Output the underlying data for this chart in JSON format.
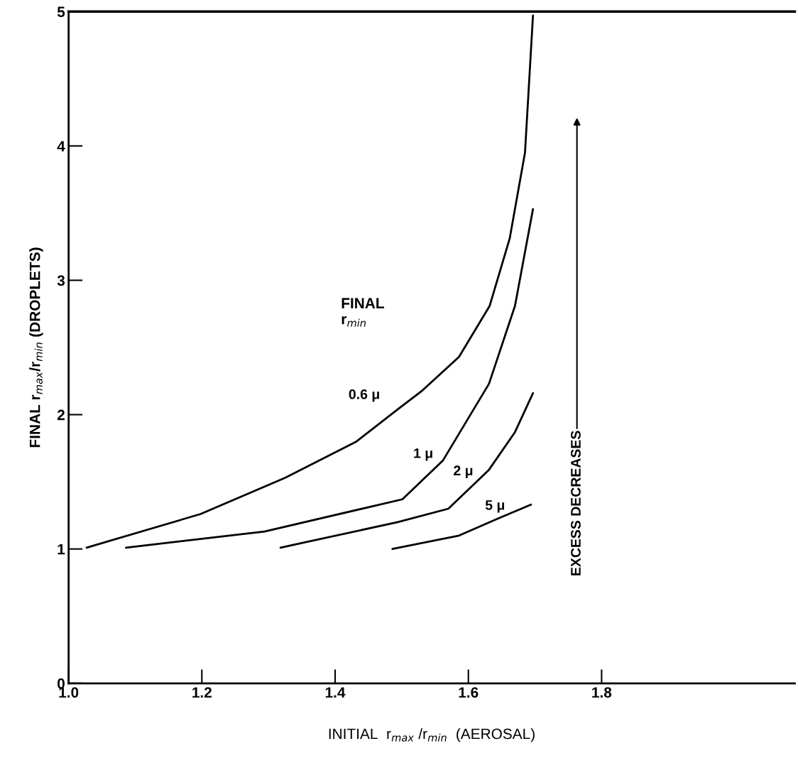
{
  "chart_data": {
    "type": "line",
    "xlabel": "INITIAL  r$_{max}$ /r$_{min}$  (AEROSAL)",
    "ylabel": "FINAL r$_{max}$/r$_{min}$ (DROPLETS)",
    "xlim": [
      1.0,
      2.09
    ],
    "xticks": [
      {
        "value": 1.0,
        "label": "1.0"
      },
      1.2,
      1.4,
      1.6,
      1.8
    ],
    "ylim": [
      0,
      5
    ],
    "yticks": [
      0,
      1,
      2,
      3,
      4,
      5
    ],
    "grid": false,
    "legend": false,
    "marker": "none",
    "line_style": "solid",
    "annotations": [
      "FINAL\nr$_{min}$",
      "EXCESS DECREASES"
    ],
    "series": [
      {
        "name": "0.6 μ",
        "color": "#000000",
        "x": [
          1.027,
          1.198,
          1.325,
          1.432,
          1.494,
          1.531,
          1.586,
          1.632,
          1.662,
          1.685,
          1.697
        ],
        "values": [
          1.01,
          1.26,
          1.53,
          1.8,
          2.04,
          2.18,
          2.43,
          2.81,
          3.31,
          3.95,
          4.97
        ]
      },
      {
        "name": "1 μ",
        "color": "#000000",
        "x": [
          1.086,
          1.294,
          1.501,
          1.562,
          1.631,
          1.67,
          1.697
        ],
        "values": [
          1.01,
          1.13,
          1.37,
          1.66,
          2.23,
          2.81,
          3.53
        ]
      },
      {
        "name": "2 μ",
        "color": "#000000",
        "x": [
          1.318,
          1.494,
          1.57,
          1.631,
          1.67,
          1.697
        ],
        "values": [
          1.01,
          1.2,
          1.3,
          1.59,
          1.87,
          2.16
        ]
      },
      {
        "name": "5 μ",
        "color": "#000000",
        "x": [
          1.486,
          1.586,
          1.646,
          1.694
        ],
        "values": [
          1.0,
          1.1,
          1.23,
          1.33
        ]
      }
    ]
  }
}
